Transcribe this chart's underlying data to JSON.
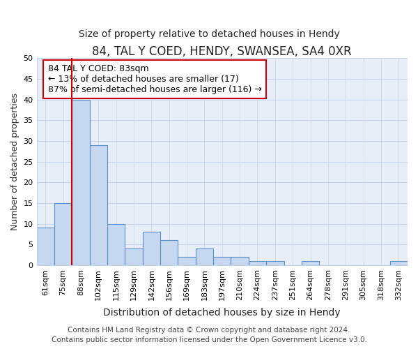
{
  "title": "84, TAL Y COED, HENDY, SWANSEA, SA4 0XR",
  "subtitle": "Size of property relative to detached houses in Hendy",
  "xlabel": "Distribution of detached houses by size in Hendy",
  "ylabel": "Number of detached properties",
  "categories": [
    "61sqm",
    "75sqm",
    "88sqm",
    "102sqm",
    "115sqm",
    "129sqm",
    "142sqm",
    "156sqm",
    "169sqm",
    "183sqm",
    "197sqm",
    "210sqm",
    "224sqm",
    "237sqm",
    "251sqm",
    "264sqm",
    "278sqm",
    "291sqm",
    "305sqm",
    "318sqm",
    "332sqm"
  ],
  "values": [
    9,
    15,
    40,
    29,
    10,
    4,
    8,
    6,
    2,
    4,
    2,
    2,
    1,
    1,
    0,
    1,
    0,
    0,
    0,
    0,
    1
  ],
  "bar_color": "#c5d8f0",
  "bar_edge_color": "#5b8fc9",
  "vline_x_index": 1.5,
  "vline_color": "#cc0000",
  "annotation_text": "84 TAL Y COED: 83sqm\n← 13% of detached houses are smaller (17)\n87% of semi-detached houses are larger (116) →",
  "annotation_box_color": "#ffffff",
  "annotation_box_edge_color": "#cc0000",
  "ylim": [
    0,
    50
  ],
  "yticks": [
    0,
    5,
    10,
    15,
    20,
    25,
    30,
    35,
    40,
    45,
    50
  ],
  "grid_color": "#c8d4e8",
  "footer_line1": "Contains HM Land Registry data © Crown copyright and database right 2024.",
  "footer_line2": "Contains public sector information licensed under the Open Government Licence v3.0.",
  "bg_color": "#ffffff",
  "plot_bg_color": "#e8eef8",
  "title_fontsize": 12,
  "subtitle_fontsize": 10,
  "xlabel_fontsize": 10,
  "ylabel_fontsize": 9,
  "tick_fontsize": 8,
  "annotation_fontsize": 9,
  "footer_fontsize": 7.5
}
